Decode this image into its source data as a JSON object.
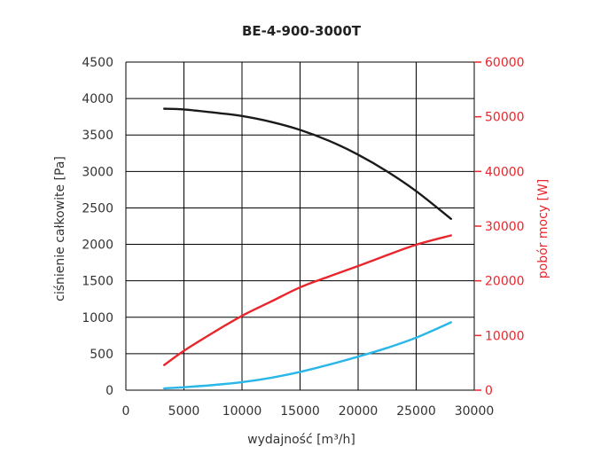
{
  "chart_data": {
    "type": "line",
    "title": "BE-4-900-3000T",
    "xlabel": "wydajność [m³/h]",
    "ylabel_left": "ciśnienie całkowite [Pa]",
    "ylabel_right": "pobór mocy [W]",
    "xlim": [
      0,
      30000
    ],
    "ylim_left": [
      0,
      4500
    ],
    "ylim_right": [
      0,
      60000
    ],
    "x_ticks": [
      0,
      5000,
      10000,
      15000,
      20000,
      25000,
      30000
    ],
    "y_left_ticks": [
      0,
      500,
      1000,
      1500,
      2000,
      2500,
      3000,
      3500,
      4000,
      4500
    ],
    "y_right_ticks": [
      0,
      10000,
      20000,
      30000,
      40000,
      50000,
      60000
    ],
    "grid": true,
    "colors": {
      "pressure": "#1a1a1a",
      "power": "#e8262b",
      "low": "#29b6e8",
      "right_axis": "#e8262b"
    },
    "series": [
      {
        "key": "pressure",
        "axis": "left",
        "color": "#1a1a1a",
        "x": [
          3300,
          5000,
          8000,
          10000,
          12500,
          15000,
          17500,
          20000,
          22500,
          25000,
          28000
        ],
        "y": [
          3860,
          3850,
          3800,
          3760,
          3680,
          3570,
          3420,
          3230,
          3000,
          2730,
          2350
        ]
      },
      {
        "key": "power",
        "axis": "right",
        "color": "#e8262b",
        "x": [
          3300,
          5000,
          7500,
          10000,
          12500,
          15000,
          17500,
          20000,
          22500,
          25000,
          28000
        ],
        "y": [
          4600,
          7200,
          10500,
          13600,
          16200,
          18800,
          20800,
          22700,
          24700,
          26600,
          28300
        ]
      },
      {
        "key": "low",
        "axis": "left",
        "color": "#29b6e8",
        "x": [
          3300,
          5000,
          7500,
          10000,
          12500,
          15000,
          17500,
          20000,
          22500,
          25000,
          28000
        ],
        "y": [
          25,
          40,
          70,
          110,
          170,
          250,
          350,
          460,
          580,
          720,
          930
        ]
      }
    ]
  }
}
